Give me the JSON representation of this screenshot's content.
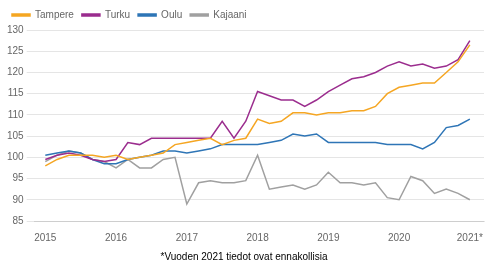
{
  "chart_data": {
    "type": "line",
    "annotations": [
      "*Vuoden 2021 tiedot ovat ennakollisia"
    ],
    "x": [
      2015,
      2015.1666666666667,
      2015.3333333333333,
      2015.5,
      2015.6666666666667,
      2015.8333333333333,
      2016,
      2016.1666666666667,
      2016.3333333333333,
      2016.5,
      2016.6666666666667,
      2016.8333333333333,
      2017,
      2017.1666666666667,
      2017.3333333333333,
      2017.5,
      2017.6666666666667,
      2017.8333333333333,
      2018,
      2018.1666666666667,
      2018.3333333333333,
      2018.5,
      2018.6666666666667,
      2018.8333333333333,
      2019,
      2019.1666666666667,
      2019.3333333333333,
      2019.5,
      2019.6666666666667,
      2019.8333333333333,
      2020,
      2020.1666666666667,
      2020.3333333333333,
      2020.5,
      2020.6666666666667,
      2020.8333333333333,
      2021
    ],
    "series": [
      {
        "name": "Tampere",
        "color": "#F5A623",
        "values": [
          98.0,
          99.5,
          100.5,
          100.5,
          100.5,
          100.0,
          100.5,
          99.5,
          100.0,
          100.5,
          101.0,
          103.0,
          103.5,
          104.0,
          104.5,
          103.0,
          104.0,
          104.5,
          109.0,
          108.0,
          108.5,
          110.5,
          110.5,
          110.0,
          110.5,
          110.5,
          111.0,
          111.0,
          112.0,
          115.0,
          116.5,
          117.0,
          117.5,
          117.5,
          120.0,
          122.5,
          126.5
        ]
      },
      {
        "name": "Turku",
        "color": "#9B2D8E",
        "values": [
          99.5,
          100.5,
          101.0,
          100.5,
          99.5,
          99.0,
          99.5,
          103.5,
          103.0,
          104.5,
          104.5,
          104.5,
          104.5,
          104.5,
          104.5,
          108.5,
          104.5,
          108.5,
          115.5,
          114.5,
          113.5,
          113.5,
          112.0,
          113.5,
          115.5,
          117.0,
          118.5,
          119.0,
          120.0,
          121.5,
          122.5,
          121.5,
          122.0,
          121.0,
          121.5,
          123.0,
          127.5
        ]
      },
      {
        "name": "Oulu",
        "color": "#2E75B6",
        "values": [
          100.5,
          101.0,
          101.5,
          101.0,
          99.5,
          98.5,
          98.5,
          99.5,
          100.0,
          100.5,
          101.5,
          101.5,
          101.0,
          101.5,
          102.0,
          103.0,
          103.0,
          103.0,
          103.0,
          103.5,
          104.0,
          105.5,
          105.0,
          105.5,
          103.5,
          103.5,
          103.5,
          103.5,
          103.5,
          103.0,
          103.0,
          103.0,
          102.0,
          103.5,
          107.0,
          107.5,
          109.0
        ]
      },
      {
        "name": "Kajaani",
        "color": "#A0A0A0",
        "values": [
          99.0,
          100.5,
          101.5,
          101.0,
          99.5,
          99.0,
          97.5,
          99.5,
          97.5,
          97.5,
          99.5,
          100.0,
          89.0,
          94.0,
          94.5,
          94.0,
          94.0,
          94.5,
          100.5,
          92.5,
          93.0,
          93.5,
          92.5,
          93.5,
          96.5,
          94.0,
          94.0,
          93.5,
          94.0,
          90.5,
          90.0,
          95.5,
          94.5,
          91.5,
          92.5,
          91.5,
          90.0
        ]
      }
    ],
    "xlim": [
      2014.85,
      2021.2
    ],
    "xticks": [
      2015,
      2016,
      2017,
      2018,
      2019,
      2020,
      {
        "value": 2021,
        "label": "2021*"
      }
    ],
    "ylim": [
      85,
      130
    ],
    "yticks": [
      85,
      90,
      95,
      100,
      105,
      110,
      115,
      120,
      125,
      130
    ],
    "grid": "y",
    "legend": "upper left"
  }
}
